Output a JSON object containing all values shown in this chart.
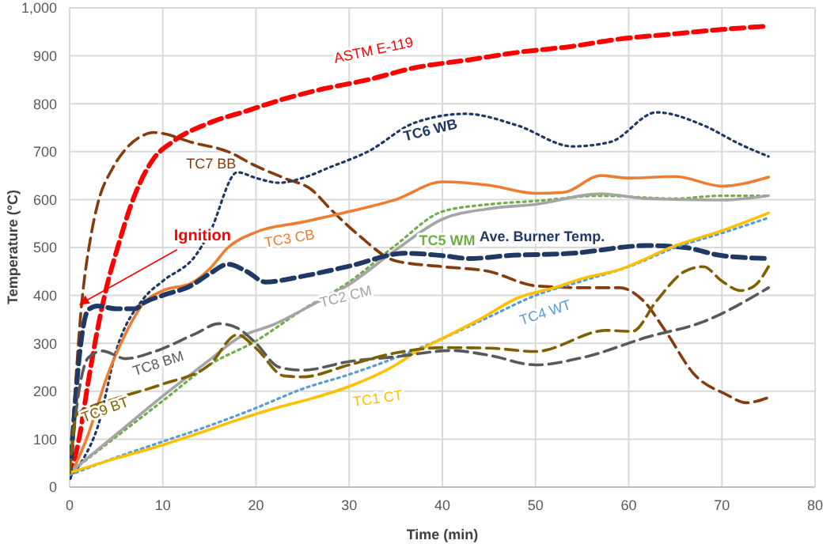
{
  "chart_data": {
    "type": "line",
    "xlabel": "Time (min)",
    "ylabel": "Temperature (°C)",
    "xlim": [
      0,
      80
    ],
    "xticks": [
      0,
      10,
      20,
      30,
      40,
      50,
      60,
      70,
      80
    ],
    "ylim": [
      0,
      1000
    ],
    "yticks": [
      0,
      100,
      200,
      300,
      400,
      500,
      600,
      700,
      800,
      900,
      {
        "value": 1000,
        "label": "1,000"
      }
    ],
    "grid": true,
    "legend": false,
    "marker": "none",
    "annotations": [
      {
        "text": "Ignition",
        "x": 1,
        "y": 380
      }
    ],
    "series": [
      {
        "name": "ASTM E-119",
        "color": "#ff0000",
        "line_style": "dashed",
        "x": [
          0,
          1,
          2,
          3,
          4,
          5,
          7,
          9,
          11,
          15,
          19,
          23,
          27,
          32,
          37,
          43,
          48,
          54,
          59,
          65,
          70,
          75
        ],
        "values": [
          20,
          100,
          220,
          330,
          420,
          490,
          610,
          685,
          720,
          760,
          785,
          810,
          830,
          850,
          875,
          892,
          907,
          920,
          935,
          946,
          955,
          962
        ]
      },
      {
        "name": "TC7 BB",
        "color": "#843c0c",
        "line_style": "dashed",
        "x": [
          0,
          0.4,
          1.2,
          2.3,
          3,
          4.6,
          6,
          8,
          9,
          10,
          13,
          17,
          20,
          23,
          26,
          28,
          31,
          35,
          40,
          45,
          50,
          55,
          59,
          61.5,
          64,
          67,
          70.5,
          72.6,
          75
        ],
        "values": [
          20,
          145,
          363,
          526,
          590,
          665,
          705,
          735,
          740,
          738,
          720,
          700,
          670,
          645,
          620,
          580,
          526,
          472,
          460,
          450,
          420,
          416,
          416,
          390,
          324,
          236,
          193,
          176,
          187
        ]
      },
      {
        "name": "TC6 WB",
        "color": "#1f3864",
        "line_style": "dotted",
        "x": [
          0,
          1.5,
          3,
          5,
          8,
          10,
          13.5,
          15,
          18,
          20,
          22.5,
          25,
          28,
          32,
          37,
          42.5,
          48,
          54,
          58,
          63,
          68,
          72,
          75
        ],
        "values": [
          20,
          60,
          125,
          285,
          395,
          430,
          483,
          530,
          657,
          645,
          635,
          645,
          668,
          700,
          760,
          779,
          755,
          711,
          720,
          782,
          755,
          715,
          690
        ]
      },
      {
        "name": "TC3 CB",
        "color": "#ed7d31",
        "line_style": "solid",
        "x": [
          0,
          2,
          4,
          6,
          8,
          10,
          13,
          15,
          17,
          20,
          25,
          30,
          35,
          40,
          45,
          50,
          53,
          57,
          60,
          65,
          70,
          75
        ],
        "values": [
          20,
          110,
          230,
          320,
          385,
          410,
          425,
          455,
          500,
          532,
          553,
          575,
          600,
          637,
          630,
          613,
          615,
          650,
          645,
          648,
          628,
          647
        ]
      },
      {
        "name": "TC5 WM",
        "color": "#70ad47",
        "line_style": "dotted",
        "x": [
          0,
          5,
          10,
          15,
          20,
          25,
          30,
          35,
          40,
          45,
          50,
          57,
          65,
          70,
          75
        ],
        "values": [
          30,
          105,
          180,
          255,
          305,
          370,
          428,
          505,
          575,
          590,
          597,
          608,
          602,
          608,
          608
        ]
      },
      {
        "name": "TC2 CM",
        "color": "#a5a5a5",
        "line_style": "solid",
        "x": [
          0,
          5,
          10,
          15,
          18,
          22,
          26,
          30,
          35,
          40,
          45,
          50,
          57,
          62,
          70,
          75
        ],
        "values": [
          30,
          110,
          190,
          265,
          310,
          340,
          380,
          423,
          495,
          559,
          581,
          590,
          612,
          602,
          599,
          608
        ]
      },
      {
        "name": "Ave. Burner Temp.",
        "color": "#1f3864",
        "line_style": "dashed",
        "x": [
          0,
          0.5,
          1,
          2,
          3,
          5,
          7,
          8,
          10,
          13,
          15,
          17,
          19,
          21,
          25,
          30,
          36,
          40,
          43,
          47,
          54,
          62,
          66,
          70,
          75
        ],
        "values": [
          20,
          150,
          265,
          370,
          378,
          372,
          372,
          385,
          400,
          420,
          445,
          465,
          450,
          428,
          440,
          461,
          488,
          483,
          477,
          483,
          488,
          504,
          500,
          483,
          477
        ]
      },
      {
        "name": "TC4 WT",
        "color": "#5b9bd5",
        "line_style": "dotted",
        "x": [
          0,
          5,
          10,
          15,
          20,
          25,
          30,
          35,
          40,
          45,
          50,
          55,
          60,
          65,
          70,
          75
        ],
        "values": [
          25,
          62,
          95,
          128,
          165,
          205,
          235,
          270,
          310,
          355,
          400,
          430,
          460,
          500,
          530,
          562
        ]
      },
      {
        "name": "TC1 CT",
        "color": "#ffc000",
        "line_style": "solid",
        "x": [
          0,
          5,
          10,
          15,
          18,
          22.5,
          26,
          30,
          35,
          37,
          40,
          44,
          48,
          52,
          55,
          59,
          65,
          70,
          75
        ],
        "values": [
          30,
          60,
          88,
          120,
          140,
          167,
          185,
          210,
          255,
          280,
          310,
          350,
          394,
          416,
          435,
          454,
          504,
          535,
          572
        ]
      },
      {
        "name": "TC8 BM",
        "color": "#595959",
        "line_style": "dashed",
        "x": [
          0,
          1,
          2,
          3.5,
          6,
          9,
          13.5,
          16,
          18,
          20,
          22.5,
          25,
          30,
          35,
          41,
          45,
          50,
          55,
          62,
          68,
          75
        ],
        "values": [
          30,
          200,
          270,
          284,
          268,
          282,
          320,
          341,
          332,
          300,
          250,
          244,
          262,
          272,
          285,
          275,
          255,
          270,
          313,
          345,
          416
        ]
      },
      {
        "name": "TC9 BT",
        "color": "#7f6000",
        "line_style": "dashed",
        "x": [
          0,
          0.7,
          2,
          5,
          10,
          15,
          18,
          20,
          23,
          25,
          30,
          35,
          40,
          45,
          50,
          57.6,
          60.4,
          63,
          66,
          68,
          70,
          72,
          73.5,
          75
        ],
        "values": [
          30,
          150,
          165,
          185,
          215,
          255,
          318,
          290,
          232,
          230,
          255,
          280,
          291,
          290,
          283,
          327,
          325,
          389,
          450,
          460,
          430,
          410,
          420,
          460
        ]
      }
    ]
  }
}
